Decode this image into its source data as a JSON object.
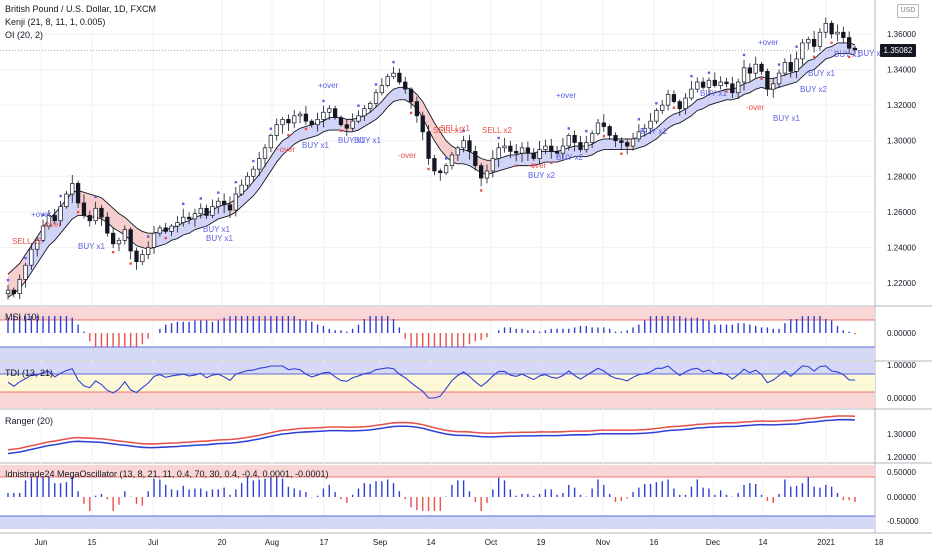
{
  "header": {
    "title": "British Pound / U.S. Dollar, 1D, FXCM",
    "indicator1": "Kenji (21, 8, 11, 1, 0.005)",
    "indicator2": "OI (20, 2)",
    "currency": "USD",
    "last_price": "1.35082"
  },
  "colors": {
    "up": "#131722",
    "down": "#131722",
    "blue": "#2f3fd6",
    "red": "#e8504a",
    "green": "#2e9c5a",
    "band_fill_up": "#c9ccf4",
    "band_fill_down": "#f6c6c6",
    "pink_zone": "#f9d6d6",
    "blue_zone": "#d6d9f6",
    "yellow_zone": "#fdf8d6",
    "marker_blue": "#5b5fe8",
    "marker_red": "#e8504a"
  },
  "panes": {
    "msi": {
      "title": "MSI (10)",
      "tick": "0.00000"
    },
    "tdi": {
      "title": "TDI (13, 21)",
      "ticks": [
        "1.00000",
        "0.00000"
      ]
    },
    "ranger": {
      "title": "Ranger (20)",
      "ticks": [
        "1.30000",
        "1.20000"
      ]
    },
    "mega": {
      "title": "Idnistrade24 MegaOscillator (13, 8, 21, 11, 0.4, 70, 30, 0.4, -0.4, 0.0001, -0.0001)",
      "ticks": [
        "0.50000",
        "0.00000",
        "-0.50000"
      ]
    }
  },
  "signals": [
    {
      "text": "SELL x2",
      "type": "sell"
    },
    {
      "text": "+over",
      "type": "buy"
    },
    {
      "text": "-over",
      "type": "sell"
    },
    {
      "text": "BUY x1",
      "type": "buy"
    },
    {
      "text": "BUY x1",
      "type": "buy"
    },
    {
      "text": "BUY x1",
      "type": "buy"
    },
    {
      "text": "BUY x1",
      "type": "buy"
    },
    {
      "text": "+over",
      "type": "buy"
    },
    {
      "text": "-over",
      "type": "sell"
    },
    {
      "text": "BUY x1",
      "type": "buy"
    },
    {
      "text": "BUY x1",
      "type": "buy"
    },
    {
      "text": "-over",
      "type": "sell"
    },
    {
      "text": "SELL x1",
      "type": "sell"
    },
    {
      "text": "SELL x1",
      "type": "sell"
    },
    {
      "text": "SELL x2",
      "type": "sell"
    },
    {
      "text": "+over",
      "type": "buy"
    },
    {
      "text": "-over",
      "type": "sell"
    },
    {
      "text": "BUY x2",
      "type": "buy"
    },
    {
      "text": "BUY x1",
      "type": "buy"
    },
    {
      "text": "BUY x2",
      "type": "buy"
    },
    {
      "text": "BUY x1",
      "type": "buy"
    },
    {
      "text": "+over",
      "type": "buy"
    },
    {
      "text": "BUY x1",
      "type": "buy"
    },
    {
      "text": "-over",
      "type": "sell"
    },
    {
      "text": "BUY x1",
      "type": "buy"
    },
    {
      "text": "BUY x2",
      "type": "buy"
    },
    {
      "text": "BUY x1",
      "type": "buy"
    },
    {
      "text": "BUY x1",
      "type": "buy"
    }
  ],
  "chart_data": {
    "type": "candlestick",
    "x_ticks": [
      "Jun",
      "15",
      "Jul",
      "20",
      "Aug",
      "17",
      "Sep",
      "14",
      "Oct",
      "19",
      "Nov",
      "16",
      "Dec",
      "14",
      "2021",
      "18"
    ],
    "y_ticks": [
      "1.36000",
      "1.34000",
      "1.32000",
      "1.30000",
      "1.28000",
      "1.26000",
      "1.24000",
      "1.22000"
    ],
    "ylim": [
      1.205,
      1.372
    ],
    "last_price": 1.35082,
    "closes": [
      1.216,
      1.214,
      1.222,
      1.23,
      1.239,
      1.244,
      1.252,
      1.258,
      1.255,
      1.263,
      1.27,
      1.276,
      1.265,
      1.258,
      1.255,
      1.262,
      1.257,
      1.248,
      1.242,
      1.244,
      1.25,
      1.238,
      1.232,
      1.236,
      1.24,
      1.248,
      1.251,
      1.249,
      1.252,
      1.254,
      1.257,
      1.256,
      1.259,
      1.262,
      1.258,
      1.263,
      1.266,
      1.264,
      1.261,
      1.27,
      1.275,
      1.28,
      1.284,
      1.29,
      1.296,
      1.303,
      1.309,
      1.312,
      1.31,
      1.314,
      1.315,
      1.311,
      1.309,
      1.312,
      1.316,
      1.318,
      1.313,
      1.309,
      1.307,
      1.311,
      1.314,
      1.318,
      1.321,
      1.327,
      1.331,
      1.336,
      1.338,
      1.333,
      1.329,
      1.322,
      1.314,
      1.305,
      1.29,
      1.283,
      1.282,
      1.286,
      1.292,
      1.296,
      1.3,
      1.294,
      1.286,
      1.279,
      1.283,
      1.29,
      1.296,
      1.297,
      1.294,
      1.293,
      1.296,
      1.293,
      1.29,
      1.295,
      1.297,
      1.294,
      1.293,
      1.297,
      1.303,
      1.299,
      1.295,
      1.299,
      1.304,
      1.31,
      1.308,
      1.303,
      1.3,
      1.299,
      1.297,
      1.301,
      1.305,
      1.307,
      1.311,
      1.317,
      1.32,
      1.326,
      1.322,
      1.318,
      1.324,
      1.329,
      1.333,
      1.33,
      1.334,
      1.331,
      1.333,
      1.332,
      1.327,
      1.333,
      1.341,
      1.338,
      1.343,
      1.339,
      1.329,
      1.332,
      1.338,
      1.344,
      1.339,
      1.346,
      1.355,
      1.357,
      1.353,
      1.361,
      1.366,
      1.36,
      1.361,
      1.358,
      1.352,
      1.351
    ],
    "upper_band": [
      1.225,
      1.228,
      1.231,
      1.236,
      1.241,
      1.246,
      1.251,
      1.256,
      1.259,
      1.263,
      1.267,
      1.271,
      1.272,
      1.271,
      1.27,
      1.269,
      1.268,
      1.265,
      1.262,
      1.259,
      1.257,
      1.254,
      1.251,
      1.249,
      1.248,
      1.248,
      1.249,
      1.25,
      1.251,
      1.252,
      1.254,
      1.255,
      1.257,
      1.258,
      1.259,
      1.261,
      1.263,
      1.264,
      1.265,
      1.267,
      1.27,
      1.273,
      1.277,
      1.281,
      1.286,
      1.291,
      1.296,
      1.3,
      1.302,
      1.305,
      1.307,
      1.308,
      1.309,
      1.31,
      1.311,
      1.313,
      1.313,
      1.313,
      1.312,
      1.312,
      1.313,
      1.314,
      1.316,
      1.319,
      1.322,
      1.326,
      1.329,
      1.33,
      1.33,
      1.329,
      1.326,
      1.322,
      1.316,
      1.31,
      1.305,
      1.3,
      1.297,
      1.295,
      1.295,
      1.294,
      1.292,
      1.29,
      1.289,
      1.289,
      1.29,
      1.291,
      1.292,
      1.292,
      1.293,
      1.293,
      1.293,
      1.294,
      1.294,
      1.294,
      1.294,
      1.295,
      1.296,
      1.297,
      1.297,
      1.297,
      1.298,
      1.3,
      1.301,
      1.301,
      1.301,
      1.301,
      1.301,
      1.301,
      1.302,
      1.303,
      1.305,
      1.307,
      1.31,
      1.313,
      1.315,
      1.316,
      1.318,
      1.32,
      1.323,
      1.324,
      1.326,
      1.327,
      1.328,
      1.329,
      1.329,
      1.33,
      1.332,
      1.333,
      1.335,
      1.336,
      1.335,
      1.335,
      1.336,
      1.337,
      1.338,
      1.339,
      1.342,
      1.345,
      1.346,
      1.349,
      1.352,
      1.353,
      1.355,
      1.355,
      1.355,
      1.354
    ],
    "lower_band": [
      1.212,
      1.214,
      1.217,
      1.221,
      1.226,
      1.231,
      1.236,
      1.241,
      1.244,
      1.248,
      1.252,
      1.256,
      1.258,
      1.258,
      1.257,
      1.257,
      1.256,
      1.254,
      1.251,
      1.249,
      1.247,
      1.244,
      1.241,
      1.24,
      1.239,
      1.24,
      1.241,
      1.242,
      1.244,
      1.245,
      1.247,
      1.248,
      1.25,
      1.251,
      1.252,
      1.254,
      1.256,
      1.257,
      1.258,
      1.26,
      1.263,
      1.266,
      1.269,
      1.273,
      1.278,
      1.283,
      1.288,
      1.292,
      1.295,
      1.298,
      1.3,
      1.301,
      1.302,
      1.303,
      1.305,
      1.306,
      1.306,
      1.306,
      1.305,
      1.305,
      1.306,
      1.308,
      1.31,
      1.312,
      1.315,
      1.319,
      1.322,
      1.323,
      1.323,
      1.321,
      1.318,
      1.313,
      1.306,
      1.3,
      1.295,
      1.291,
      1.288,
      1.287,
      1.287,
      1.286,
      1.284,
      1.282,
      1.281,
      1.282,
      1.283,
      1.284,
      1.285,
      1.286,
      1.286,
      1.286,
      1.286,
      1.287,
      1.288,
      1.288,
      1.288,
      1.289,
      1.29,
      1.291,
      1.291,
      1.291,
      1.292,
      1.294,
      1.295,
      1.295,
      1.295,
      1.295,
      1.295,
      1.295,
      1.296,
      1.297,
      1.299,
      1.301,
      1.304,
      1.307,
      1.309,
      1.31,
      1.312,
      1.314,
      1.317,
      1.318,
      1.32,
      1.321,
      1.322,
      1.323,
      1.323,
      1.324,
      1.326,
      1.327,
      1.329,
      1.33,
      1.329,
      1.329,
      1.33,
      1.331,
      1.332,
      1.333,
      1.336,
      1.339,
      1.34,
      1.343,
      1.346,
      1.347,
      1.349,
      1.349,
      1.349,
      1.348
    ]
  }
}
